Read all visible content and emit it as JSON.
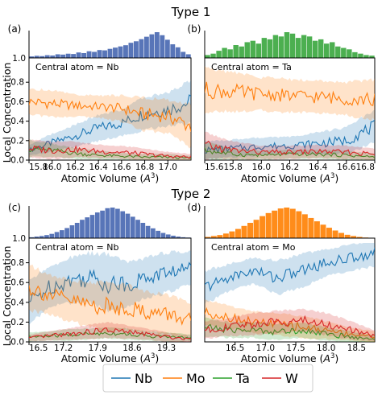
{
  "figure": {
    "titles": [
      "Type 1",
      "Type 2"
    ],
    "ylabel": "Local Concentration",
    "xlabel_prefix": "Atomic Volume (",
    "xlabel_sym": "A",
    "xlabel_sup": "3",
    "xlabel_suffix": ")",
    "legend": [
      {
        "name": "Nb",
        "color": "#1f77b4"
      },
      {
        "name": "Mo",
        "color": "#ff7f0e"
      },
      {
        "name": "Ta",
        "color": "#2ca02c"
      },
      {
        "name": "W",
        "color": "#d62728"
      }
    ]
  },
  "chart_data": [
    {
      "panel": "(a)",
      "type": "line",
      "group": "Type 1",
      "annotation": "Central atom = Nb",
      "hist_color": "#5875b8",
      "xlim": [
        15.8,
        17.2
      ],
      "ylim": [
        0,
        1.0
      ],
      "xticks": [
        "15.8",
        "16.0",
        "16.2",
        "16.4",
        "16.6",
        "16.8",
        "17.0"
      ],
      "yticks": [
        "0.0",
        "0.2",
        "0.4",
        "0.6",
        "0.8"
      ],
      "hist_ytick": "1.0",
      "histogram": {
        "start": 15.8,
        "end": 17.2,
        "values": [
          0.05,
          0.07,
          0.06,
          0.09,
          0.08,
          0.12,
          0.11,
          0.14,
          0.13,
          0.18,
          0.16,
          0.22,
          0.2,
          0.26,
          0.25,
          0.3,
          0.34,
          0.38,
          0.42,
          0.5,
          0.55,
          0.62,
          0.7,
          0.78,
          0.85,
          0.75,
          0.6,
          0.45,
          0.35,
          0.2,
          0.12
        ]
      },
      "series": [
        {
          "name": "Nb",
          "x": [
            15.8,
            16.0,
            16.2,
            16.4,
            16.6,
            16.8,
            17.0,
            17.2
          ],
          "y": [
            0.1,
            0.18,
            0.25,
            0.33,
            0.38,
            0.48,
            0.52,
            0.6
          ],
          "band": [
            0.05,
            0.08,
            0.1,
            0.12,
            0.12,
            0.15,
            0.15,
            0.2
          ]
        },
        {
          "name": "Mo",
          "x": [
            15.8,
            16.0,
            16.2,
            16.4,
            16.6,
            16.8,
            17.0,
            17.2
          ],
          "y": [
            0.6,
            0.58,
            0.56,
            0.55,
            0.53,
            0.47,
            0.45,
            0.35
          ],
          "band": [
            0.12,
            0.12,
            0.1,
            0.1,
            0.12,
            0.15,
            0.15,
            0.2
          ]
        },
        {
          "name": "Ta",
          "x": [
            15.8,
            16.0,
            16.2,
            16.4,
            16.6,
            16.8,
            17.0,
            17.2
          ],
          "y": [
            0.12,
            0.1,
            0.07,
            0.05,
            0.04,
            0.03,
            0.03,
            0.02
          ],
          "band": [
            0.08,
            0.06,
            0.05,
            0.04,
            0.03,
            0.03,
            0.03,
            0.02
          ]
        },
        {
          "name": "W",
          "x": [
            15.8,
            16.0,
            16.2,
            16.4,
            16.6,
            16.8,
            17.0,
            17.2
          ],
          "y": [
            0.12,
            0.1,
            0.11,
            0.09,
            0.08,
            0.06,
            0.04,
            0.03
          ],
          "band": [
            0.08,
            0.08,
            0.07,
            0.06,
            0.06,
            0.05,
            0.04,
            0.03
          ]
        }
      ]
    },
    {
      "panel": "(b)",
      "type": "line",
      "group": "Type 1",
      "annotation": "Central atom = Ta",
      "hist_color": "#4caf50",
      "xlim": [
        15.6,
        16.8
      ],
      "ylim": [
        0,
        1.0
      ],
      "xticks": [
        "15.6",
        "15.8",
        "16.0",
        "16.2",
        "16.4",
        "16.6",
        "16.8"
      ],
      "yticks": [],
      "hist_ytick": "",
      "histogram": {
        "start": 15.6,
        "end": 16.8,
        "values": [
          0.1,
          0.15,
          0.25,
          0.35,
          0.3,
          0.45,
          0.4,
          0.55,
          0.6,
          0.5,
          0.7,
          0.65,
          0.8,
          0.75,
          0.9,
          0.85,
          0.7,
          0.8,
          0.75,
          0.6,
          0.65,
          0.5,
          0.55,
          0.4,
          0.35,
          0.3,
          0.2,
          0.15,
          0.1,
          0.08
        ]
      },
      "series": [
        {
          "name": "Nb",
          "x": [
            15.6,
            15.8,
            16.0,
            16.2,
            16.4,
            16.6,
            16.8
          ],
          "y": [
            0.1,
            0.12,
            0.14,
            0.15,
            0.17,
            0.2,
            0.35
          ],
          "band": [
            0.08,
            0.08,
            0.08,
            0.08,
            0.1,
            0.12,
            0.15
          ]
        },
        {
          "name": "Mo",
          "x": [
            15.6,
            15.8,
            16.0,
            16.2,
            16.4,
            16.6,
            16.8
          ],
          "y": [
            0.72,
            0.7,
            0.68,
            0.66,
            0.65,
            0.63,
            0.62
          ],
          "band": [
            0.2,
            0.18,
            0.15,
            0.15,
            0.15,
            0.15,
            0.18
          ]
        },
        {
          "name": "Ta",
          "x": [
            15.6,
            15.8,
            16.0,
            16.2,
            16.4,
            16.6,
            16.8
          ],
          "y": [
            0.1,
            0.06,
            0.05,
            0.06,
            0.06,
            0.05,
            0.03
          ],
          "band": [
            0.08,
            0.05,
            0.04,
            0.04,
            0.04,
            0.04,
            0.03
          ]
        },
        {
          "name": "W",
          "x": [
            15.6,
            15.8,
            16.0,
            16.2,
            16.4,
            16.6,
            16.8
          ],
          "y": [
            0.15,
            0.1,
            0.08,
            0.08,
            0.09,
            0.08,
            0.06
          ],
          "band": [
            0.12,
            0.08,
            0.06,
            0.06,
            0.06,
            0.06,
            0.05
          ]
        }
      ]
    },
    {
      "panel": "(c)",
      "type": "line",
      "group": "Type 2",
      "annotation": "Central atom = Nb",
      "hist_color": "#5875b8",
      "xlim": [
        16.5,
        19.8
      ],
      "ylim": [
        0,
        1.0
      ],
      "xticks": [
        "16.5",
        "17.2",
        "17.9",
        "18.6",
        "19.3"
      ],
      "yticks": [
        "0.0",
        "0.2",
        "0.4",
        "0.6",
        "0.8"
      ],
      "hist_ytick": "1.0",
      "histogram": {
        "start": 16.5,
        "end": 19.8,
        "values": [
          0.03,
          0.05,
          0.07,
          0.1,
          0.14,
          0.2,
          0.26,
          0.33,
          0.42,
          0.5,
          0.6,
          0.68,
          0.76,
          0.84,
          0.9,
          0.98,
          1.0,
          0.96,
          0.88,
          0.8,
          0.7,
          0.6,
          0.5,
          0.4,
          0.32,
          0.24,
          0.17,
          0.12,
          0.08,
          0.05,
          0.03,
          0.02
        ]
      },
      "series": [
        {
          "name": "Nb",
          "x": [
            16.5,
            16.9,
            17.3,
            17.7,
            18.1,
            18.5,
            18.9,
            19.3,
            19.8
          ],
          "y": [
            0.4,
            0.55,
            0.62,
            0.65,
            0.6,
            0.58,
            0.65,
            0.7,
            0.75
          ],
          "band": [
            0.2,
            0.18,
            0.2,
            0.22,
            0.25,
            0.2,
            0.18,
            0.18,
            0.15
          ]
        },
        {
          "name": "Mo",
          "x": [
            16.5,
            16.9,
            17.3,
            17.7,
            18.1,
            18.5,
            18.9,
            19.3,
            19.8
          ],
          "y": [
            0.55,
            0.48,
            0.42,
            0.38,
            0.35,
            0.35,
            0.3,
            0.28,
            0.22
          ],
          "band": [
            0.2,
            0.18,
            0.18,
            0.2,
            0.22,
            0.2,
            0.18,
            0.18,
            0.15
          ]
        },
        {
          "name": "Ta",
          "x": [
            16.5,
            16.9,
            17.3,
            17.7,
            18.1,
            18.5,
            18.9,
            19.3,
            19.8
          ],
          "y": [
            0.05,
            0.06,
            0.07,
            0.08,
            0.09,
            0.08,
            0.06,
            0.05,
            0.04
          ],
          "band": [
            0.04,
            0.04,
            0.05,
            0.05,
            0.05,
            0.05,
            0.04,
            0.04,
            0.03
          ]
        },
        {
          "name": "W",
          "x": [
            16.5,
            16.9,
            17.3,
            17.7,
            18.1,
            18.5,
            18.9,
            19.3,
            19.8
          ],
          "y": [
            0.04,
            0.06,
            0.08,
            0.1,
            0.12,
            0.1,
            0.08,
            0.05,
            0.03
          ],
          "band": [
            0.03,
            0.04,
            0.05,
            0.06,
            0.07,
            0.06,
            0.05,
            0.04,
            0.03
          ]
        }
      ]
    },
    {
      "panel": "(d)",
      "type": "line",
      "group": "Type 2",
      "annotation": "Central atom = Mo",
      "hist_color": "#ff8c1a",
      "xlim": [
        16.0,
        18.8
      ],
      "ylim": [
        0,
        1.0
      ],
      "xticks": [
        "16.5",
        "17.0",
        "17.5",
        "18.0",
        "18.5"
      ],
      "yticks": [],
      "hist_ytick": "",
      "histogram": {
        "start": 16.0,
        "end": 18.8,
        "values": [
          0.04,
          0.07,
          0.1,
          0.15,
          0.22,
          0.3,
          0.4,
          0.5,
          0.6,
          0.72,
          0.82,
          0.9,
          0.97,
          1.0,
          0.96,
          0.88,
          0.78,
          0.66,
          0.55,
          0.44,
          0.34,
          0.25,
          0.17,
          0.11,
          0.07,
          0.04,
          0.02,
          0.01
        ]
      },
      "series": [
        {
          "name": "Nb",
          "x": [
            16.0,
            16.4,
            16.8,
            17.2,
            17.6,
            18.0,
            18.4,
            18.8
          ],
          "y": [
            0.55,
            0.65,
            0.72,
            0.65,
            0.72,
            0.8,
            0.85,
            0.9
          ],
          "band": [
            0.15,
            0.12,
            0.12,
            0.15,
            0.15,
            0.12,
            0.12,
            0.12
          ]
        },
        {
          "name": "Mo",
          "x": [
            16.0,
            16.4,
            16.8,
            17.2,
            17.6,
            18.0,
            18.4,
            18.8
          ],
          "y": [
            0.3,
            0.25,
            0.2,
            0.18,
            0.15,
            0.12,
            0.08,
            0.05
          ],
          "band": [
            0.12,
            0.1,
            0.1,
            0.1,
            0.1,
            0.08,
            0.06,
            0.05
          ]
        },
        {
          "name": "Ta",
          "x": [
            16.0,
            16.4,
            16.8,
            17.2,
            17.6,
            18.0,
            18.4,
            18.8
          ],
          "y": [
            0.15,
            0.12,
            0.12,
            0.1,
            0.12,
            0.08,
            0.05,
            0.03
          ],
          "band": [
            0.08,
            0.07,
            0.07,
            0.07,
            0.07,
            0.06,
            0.05,
            0.03
          ]
        },
        {
          "name": "W",
          "x": [
            16.0,
            16.4,
            16.8,
            17.2,
            17.6,
            18.0,
            18.4,
            18.8
          ],
          "y": [
            0.12,
            0.15,
            0.18,
            0.2,
            0.22,
            0.18,
            0.12,
            0.06
          ],
          "band": [
            0.08,
            0.08,
            0.1,
            0.1,
            0.1,
            0.1,
            0.08,
            0.05
          ]
        }
      ]
    }
  ]
}
